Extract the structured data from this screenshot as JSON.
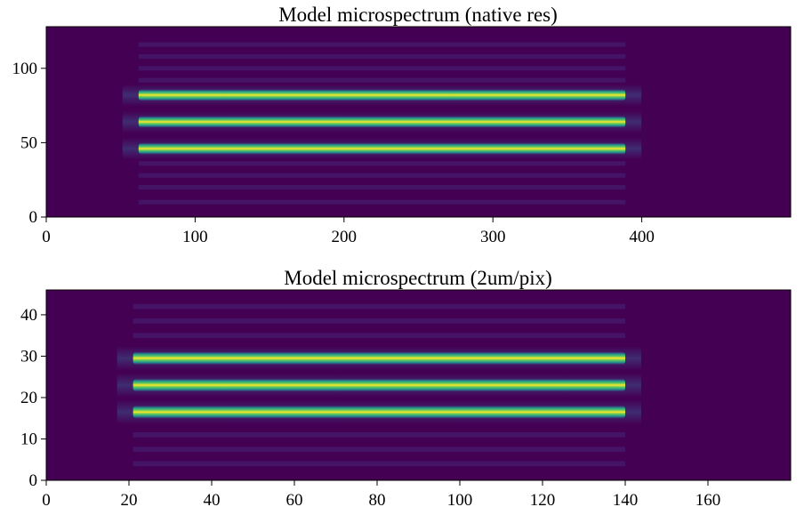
{
  "chart_data": [
    {
      "type": "heatmap",
      "title": "Model microspectrum (native res)",
      "xlabel": "",
      "ylabel": "",
      "xlim": [
        0,
        500
      ],
      "ylim": [
        0,
        128
      ],
      "xticks": [
        0,
        100,
        200,
        300,
        400
      ],
      "yticks": [
        0,
        50,
        100
      ],
      "colormap": "viridis",
      "grid": false,
      "stripes": [
        {
          "y": 46,
          "x_start": 62,
          "x_end": 389
        },
        {
          "y": 64,
          "x_start": 62,
          "x_end": 389
        },
        {
          "y": 82,
          "x_start": 62,
          "x_end": 389
        }
      ],
      "stripe_thickness": 8,
      "faint_bands": [
        10,
        20,
        28,
        36,
        92,
        100,
        108,
        116
      ]
    },
    {
      "type": "heatmap",
      "title": "Model microspectrum (2um/pix)",
      "xlabel": "",
      "ylabel": "",
      "xlim": [
        0,
        180
      ],
      "ylim": [
        0,
        46
      ],
      "xticks": [
        0,
        20,
        40,
        60,
        80,
        100,
        120,
        140,
        160
      ],
      "yticks": [
        0,
        10,
        20,
        30,
        40
      ],
      "colormap": "viridis",
      "grid": false,
      "stripes": [
        {
          "y": 16.5,
          "x_start": 21,
          "x_end": 140
        },
        {
          "y": 23,
          "x_start": 21,
          "x_end": 140
        },
        {
          "y": 29.5,
          "x_start": 21,
          "x_end": 140
        }
      ],
      "stripe_thickness": 3.2,
      "faint_bands": [
        4,
        7.5,
        11,
        35,
        38.5,
        42
      ]
    }
  ],
  "colors": {
    "background": "#440154",
    "stripe_core": "#fde725",
    "stripe_mid": "#5ec962",
    "stripe_edge": "#21918c",
    "halo": "#3b528b"
  }
}
